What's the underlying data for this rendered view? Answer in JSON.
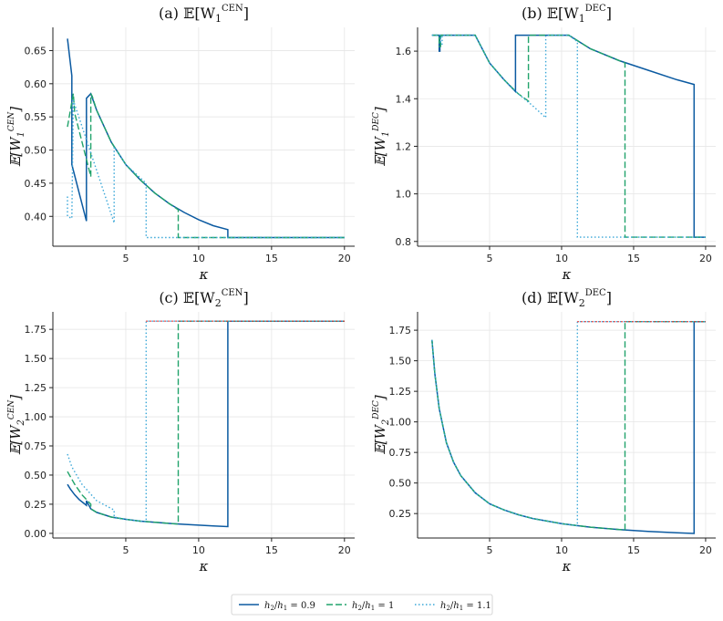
{
  "legend": [
    {
      "label": "h2/h1 = 0.9",
      "color": "#0b5aa1",
      "dash": "solid"
    },
    {
      "label": "h2/h1 = 1",
      "color": "#21a36b",
      "dash": "dashed"
    },
    {
      "label": "h2/h1 = 1.1",
      "color": "#3aa7d8",
      "dash": "dotted"
    }
  ],
  "chart_data": [
    {
      "type": "line",
      "title": "(a) E[W1^CEN]",
      "xlabel": "κ",
      "ylabel": "E[W1^CEN]",
      "xlim": [
        0,
        20.7
      ],
      "ylim": [
        0.355,
        0.685
      ],
      "xticks": [
        5,
        10,
        15,
        20
      ],
      "yticks": [
        0.4,
        0.45,
        0.5,
        0.55,
        0.6,
        0.65
      ],
      "ytick_labels": [
        "0.40",
        "0.45",
        "0.50",
        "0.55",
        "0.60",
        "0.65"
      ],
      "grid": true,
      "series": [
        {
          "name": "h2/h1 = 0.9",
          "color": "#0b5aa1",
          "dash": "solid",
          "x": [
            1.0,
            1.3,
            1.3,
            2.3,
            2.3,
            2.6,
            3,
            4,
            5,
            6,
            7,
            8,
            9,
            10,
            11,
            12,
            12,
            20
          ],
          "y": [
            0.668,
            0.612,
            0.478,
            0.393,
            0.578,
            0.585,
            0.56,
            0.512,
            0.478,
            0.455,
            0.435,
            0.419,
            0.406,
            0.395,
            0.386,
            0.38,
            0.368,
            0.368
          ]
        },
        {
          "name": "h2/h1 = 1",
          "color": "#21a36b",
          "dash": "dashed",
          "x": [
            1.0,
            1.4,
            1.5,
            2.6,
            2.6,
            2.7,
            3,
            4,
            5,
            6,
            7,
            8,
            8.6,
            8.6,
            20
          ],
          "y": [
            0.535,
            0.585,
            0.555,
            0.46,
            0.585,
            0.581,
            0.56,
            0.512,
            0.478,
            0.455,
            0.435,
            0.419,
            0.41,
            0.368,
            0.368
          ]
        },
        {
          "name": "h2/h1 = 1.1",
          "color": "#3aa7d8",
          "dash": "dotted",
          "x": [
            1.0,
            1.0,
            1.3,
            1.4,
            4.2,
            4.2,
            5,
            6,
            6.4,
            6.4,
            20
          ],
          "y": [
            0.43,
            0.4,
            0.397,
            0.575,
            0.39,
            0.505,
            0.478,
            0.458,
            0.45,
            0.368,
            0.368
          ]
        }
      ]
    },
    {
      "type": "line",
      "title": "(b) E[W1^DEC]",
      "xlabel": "κ",
      "ylabel": "E[W1^DEC]",
      "xlim": [
        0,
        20.7
      ],
      "ylim": [
        0.78,
        1.7
      ],
      "xticks": [
        5,
        10,
        15,
        20
      ],
      "yticks": [
        0.8,
        1.0,
        1.2,
        1.4,
        1.6
      ],
      "ytick_labels": [
        "0.8",
        "1.0",
        "1.2",
        "1.4",
        "1.6"
      ],
      "grid": true,
      "series": [
        {
          "name": "h2/h1 = 0.9",
          "color": "#0b5aa1",
          "dash": "solid",
          "x": [
            1.0,
            1.5,
            1.5,
            1.55,
            1.55,
            4,
            5,
            6,
            6.8,
            6.8,
            10.5,
            12,
            14,
            16,
            18,
            19.2,
            19.2,
            20
          ],
          "y": [
            1.667,
            1.667,
            1.6,
            1.6,
            1.667,
            1.667,
            1.55,
            1.48,
            1.43,
            1.667,
            1.667,
            1.61,
            1.56,
            1.52,
            1.48,
            1.46,
            0.818,
            0.818
          ]
        },
        {
          "name": "h2/h1 = 1",
          "color": "#21a36b",
          "dash": "dashed",
          "x": [
            1.0,
            1.5,
            1.5,
            1.6,
            1.6,
            4,
            5,
            6,
            7,
            7.7,
            7.7,
            10.5,
            12,
            14,
            14.4,
            14.4,
            20
          ],
          "y": [
            1.667,
            1.667,
            1.62,
            1.62,
            1.667,
            1.667,
            1.55,
            1.48,
            1.42,
            1.39,
            1.667,
            1.667,
            1.61,
            1.56,
            1.55,
            0.818,
            0.818
          ]
        },
        {
          "name": "h2/h1 = 1.1",
          "color": "#3aa7d8",
          "dash": "dotted",
          "x": [
            1.0,
            1.6,
            1.6,
            1.7,
            1.7,
            4,
            5,
            6,
            7,
            8,
            8.9,
            8.9,
            10.5,
            11.1,
            11.1,
            20
          ],
          "y": [
            1.667,
            1.667,
            1.63,
            1.63,
            1.667,
            1.667,
            1.55,
            1.48,
            1.42,
            1.37,
            1.32,
            1.667,
            1.667,
            1.64,
            0.818,
            0.818
          ]
        }
      ]
    },
    {
      "type": "line",
      "title": "(c) E[W2^CEN]",
      "xlabel": "κ",
      "ylabel": "E[W2^CEN]",
      "xlim": [
        0,
        20.7
      ],
      "ylim": [
        -0.04,
        1.9
      ],
      "xticks": [
        5,
        10,
        15,
        20
      ],
      "yticks": [
        0.0,
        0.25,
        0.5,
        0.75,
        1.0,
        1.25,
        1.5,
        1.75
      ],
      "ytick_labels": [
        "0.00",
        "0.25",
        "0.50",
        "0.75",
        "1.00",
        "1.25",
        "1.50",
        "1.75"
      ],
      "grid": true,
      "series": [
        {
          "name": "h2/h1 = 0.9",
          "color": "#0b5aa1",
          "dash": "solid",
          "x": [
            1.0,
            1.2,
            1.5,
            1.8,
            2.1,
            2.3,
            2.3,
            2.6,
            3,
            4,
            5,
            6,
            7,
            8,
            9,
            10,
            11,
            12,
            12,
            20
          ],
          "y": [
            0.42,
            0.38,
            0.33,
            0.29,
            0.26,
            0.24,
            0.28,
            0.21,
            0.18,
            0.14,
            0.12,
            0.105,
            0.095,
            0.085,
            0.077,
            0.07,
            0.063,
            0.058,
            1.82,
            1.82
          ]
        },
        {
          "name": "h2/h1 = 1",
          "color": "#21a36b",
          "dash": "dashed",
          "x": [
            1.0,
            1.5,
            2.0,
            2.6,
            2.6,
            3,
            4,
            5,
            6,
            7,
            8,
            8.6,
            8.6,
            20
          ],
          "y": [
            0.53,
            0.42,
            0.33,
            0.25,
            0.21,
            0.18,
            0.14,
            0.12,
            0.105,
            0.095,
            0.085,
            0.08,
            1.82,
            1.82
          ]
        },
        {
          "name": "h2/h1 = 1.1",
          "color": "#3aa7d8",
          "dash": "dotted",
          "x": [
            1.0,
            1.3,
            2.0,
            3.0,
            4.2,
            4.2,
            5,
            6,
            6.4,
            6.4,
            20
          ],
          "y": [
            0.68,
            0.57,
            0.42,
            0.28,
            0.2,
            0.14,
            0.12,
            0.105,
            0.1,
            1.82,
            1.82
          ]
        },
        {
          "name": "cap",
          "color": "#e8302e",
          "dash": "dotted",
          "x": [
            6.4,
            20
          ],
          "y": [
            1.82,
            1.82
          ]
        }
      ]
    },
    {
      "type": "line",
      "title": "(d) E[W2^DEC]",
      "xlabel": "κ",
      "ylabel": "E[W2^DEC]",
      "xlim": [
        0,
        20.7
      ],
      "ylim": [
        0.05,
        1.9
      ],
      "xticks": [
        5,
        10,
        15,
        20
      ],
      "yticks": [
        0.25,
        0.5,
        0.75,
        1.0,
        1.25,
        1.5,
        1.75
      ],
      "ytick_labels": [
        "0.25",
        "0.50",
        "0.75",
        "1.00",
        "1.25",
        "1.50",
        "1.75"
      ],
      "grid": true,
      "series": [
        {
          "name": "h2/h1 = 0.9",
          "color": "#0b5aa1",
          "dash": "solid",
          "x": [
            1.0,
            1.2,
            1.5,
            2,
            2.5,
            3,
            4,
            5,
            6,
            7,
            8,
            10,
            12,
            14,
            16,
            18,
            19.2,
            19.2,
            20
          ],
          "y": [
            1.67,
            1.39,
            1.11,
            0.83,
            0.67,
            0.56,
            0.42,
            0.33,
            0.28,
            0.24,
            0.21,
            0.167,
            0.139,
            0.119,
            0.104,
            0.093,
            0.087,
            1.82,
            1.82
          ]
        },
        {
          "name": "h2/h1 = 1",
          "color": "#21a36b",
          "dash": "dashed",
          "x": [
            1.0,
            1.2,
            1.5,
            2,
            2.5,
            3,
            4,
            5,
            6,
            7,
            8,
            10,
            12,
            14.4,
            14.4,
            20
          ],
          "y": [
            1.67,
            1.39,
            1.11,
            0.83,
            0.67,
            0.56,
            0.42,
            0.33,
            0.28,
            0.24,
            0.21,
            0.167,
            0.139,
            0.116,
            1.82,
            1.82
          ]
        },
        {
          "name": "h2/h1 = 1.1",
          "color": "#3aa7d8",
          "dash": "dotted",
          "x": [
            1.0,
            1.2,
            1.5,
            2,
            2.5,
            3,
            4,
            5,
            6,
            7,
            8,
            10,
            11.1,
            11.1,
            20
          ],
          "y": [
            1.67,
            1.39,
            1.11,
            0.83,
            0.67,
            0.56,
            0.42,
            0.33,
            0.28,
            0.24,
            0.21,
            0.167,
            0.15,
            1.82,
            1.82
          ]
        },
        {
          "name": "cap",
          "color": "#e8302e",
          "dash": "dotted",
          "x": [
            11.1,
            20
          ],
          "y": [
            1.82,
            1.82
          ]
        }
      ]
    }
  ]
}
